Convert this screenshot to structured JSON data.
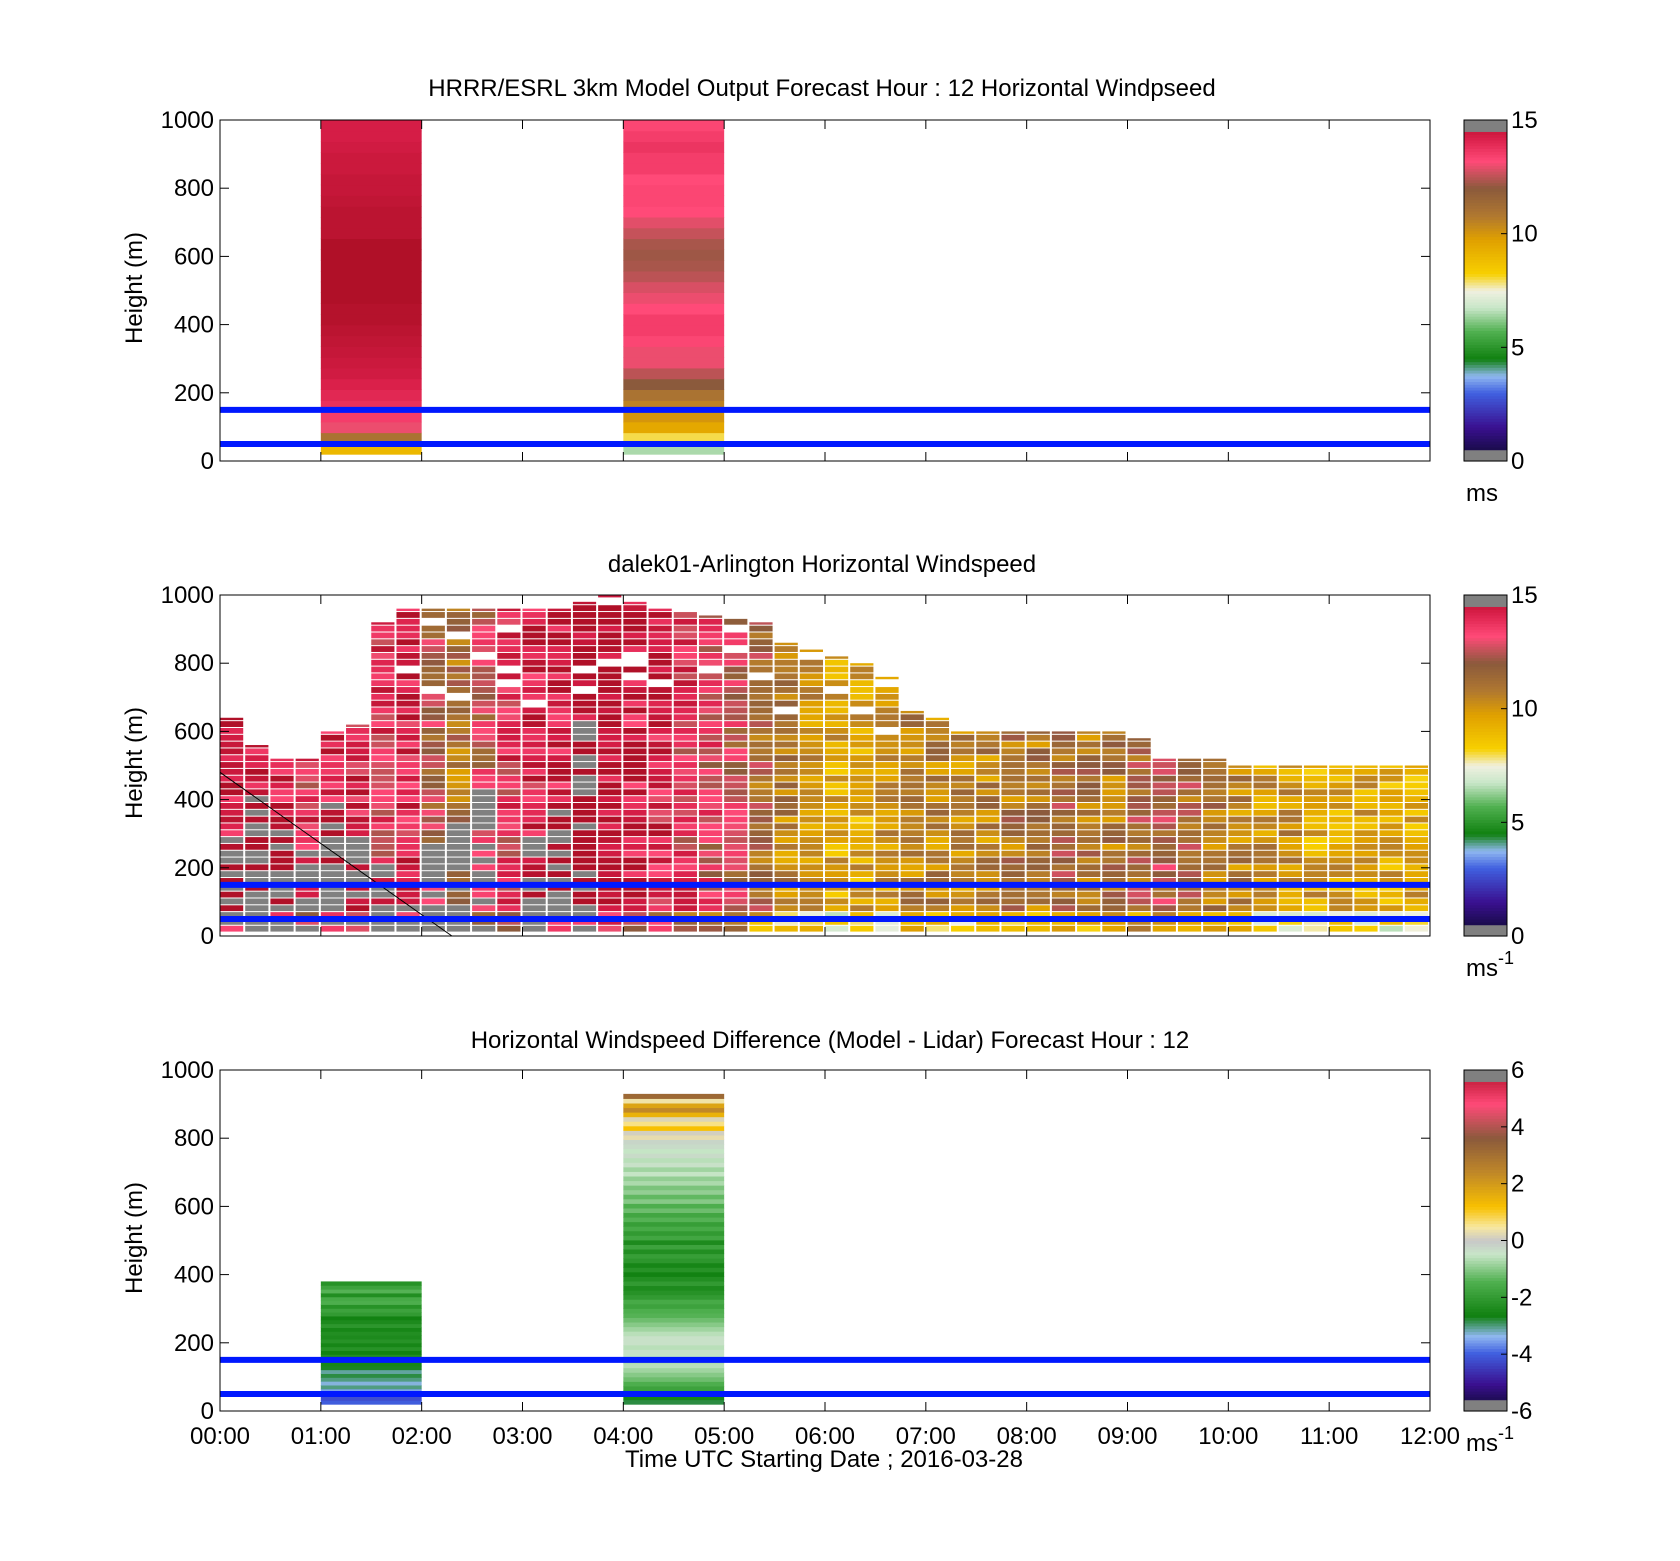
{
  "chart_data": [
    {
      "type": "heatmap",
      "title": "HRRR/ESRL 3km Model Output   Forecast Hour : 12 Horizontal Windpseed",
      "ylabel": "Height (m)",
      "xlabel": "",
      "ylim": [
        0,
        1000
      ],
      "yticks": [
        "0",
        "200",
        "400",
        "600",
        "800",
        "1000"
      ],
      "xlim_hours": [
        0,
        12
      ],
      "colorbar": {
        "ticks": [
          "0",
          "5",
          "10",
          "15"
        ],
        "range": [
          0,
          15
        ],
        "unit_base": "ms",
        "unit_sup": "",
        "palette": "speed"
      },
      "reference_lines_m": [
        50,
        150
      ],
      "columns": [
        {
          "t_start": 1.0,
          "t_end": 2.0,
          "bottom": 20,
          "top": 1000,
          "values": [
            9,
            11,
            13,
            13.5,
            13.8,
            14,
            14.2,
            14.4,
            14.5,
            14.6,
            14.7,
            14.8,
            14.9,
            14.9,
            15,
            15,
            15,
            15,
            15,
            15,
            14.8,
            14.8,
            14.8,
            14.7,
            14.6,
            14.6,
            14.5,
            14.5,
            14.4,
            14.3,
            14.3
          ]
        },
        {
          "t_start": 4.0,
          "t_end": 5.0,
          "bottom": 20,
          "top": 1000,
          "values": [
            6.5,
            8,
            9.5,
            10,
            10.5,
            11,
            12,
            12.5,
            13,
            13,
            13.3,
            13.5,
            13.5,
            13.2,
            13,
            12.8,
            12.5,
            12.3,
            12.2,
            12.3,
            12.6,
            12.9,
            13.2,
            13.3,
            13.3,
            13.2,
            13.5,
            13.5,
            13.7,
            13.5,
            13.3
          ]
        }
      ]
    },
    {
      "type": "heatmap",
      "title": "dalek01-Arlington  Horizontal Windspeed",
      "ylabel": "Height (m)",
      "xlabel": "",
      "ylim": [
        0,
        1000
      ],
      "yticks": [
        "0",
        "200",
        "400",
        "600",
        "800",
        "1000"
      ],
      "xlim_hours": [
        0,
        12
      ],
      "colorbar": {
        "ticks": [
          "0",
          "5",
          "10",
          "15"
        ],
        "range": [
          0,
          15
        ],
        "unit_base": "ms",
        "unit_sup": "-1",
        "palette": "speed"
      },
      "reference_lines_m": [
        50,
        150
      ],
      "column_width_hours": 0.25,
      "row_height_m": 20,
      "profiles": [
        {
          "t": 0.0,
          "top": 640,
          "v": 14.5,
          "gray_top": 280
        },
        {
          "t": 0.25,
          "top": 560,
          "v": 14,
          "gray_top": 420
        },
        {
          "t": 0.5,
          "top": 520,
          "v": 14.5,
          "gray_top": 300
        },
        {
          "t": 0.75,
          "top": 520,
          "v": 13.5,
          "gray_top": 250
        },
        {
          "t": 1.0,
          "top": 600,
          "v": 14.5,
          "gray_top": 380
        },
        {
          "t": 1.25,
          "top": 620,
          "v": 14,
          "gray_top": 330
        },
        {
          "t": 1.5,
          "top": 920,
          "v": 13.5,
          "gray_top": 200
        },
        {
          "t": 1.75,
          "top": 960,
          "v": 14,
          "gray_top": 120
        },
        {
          "t": 2.0,
          "top": 960,
          "v": 12,
          "gray_top": 260
        },
        {
          "t": 2.25,
          "top": 960,
          "v": 11,
          "gray_top": 320
        },
        {
          "t": 2.5,
          "top": 960,
          "v": 12.5,
          "gray_top": 420
        },
        {
          "t": 2.75,
          "top": 960,
          "v": 13.5,
          "gray_top": 0
        },
        {
          "t": 3.0,
          "top": 960,
          "v": 14,
          "gray_top": 280
        },
        {
          "t": 3.25,
          "top": 960,
          "v": 14.5,
          "gray_top": 380
        },
        {
          "t": 3.5,
          "top": 980,
          "v": 14.8,
          "gray_top": 620
        },
        {
          "t": 3.75,
          "top": 1000,
          "v": 15,
          "gray_top": 0
        },
        {
          "t": 4.0,
          "top": 980,
          "v": 14.5,
          "gray_top": 0
        },
        {
          "t": 4.25,
          "top": 960,
          "v": 14,
          "gray_top": 0
        },
        {
          "t": 4.5,
          "top": 950,
          "v": 13.5,
          "gray_top": 0
        },
        {
          "t": 4.75,
          "top": 940,
          "v": 13,
          "gray_top": 0
        },
        {
          "t": 5.0,
          "top": 940,
          "v": 12.5,
          "gray_top": 0
        },
        {
          "t": 5.25,
          "top": 920,
          "v": 11.5,
          "gray_top": 0
        },
        {
          "t": 5.5,
          "top": 860,
          "v": 10.5,
          "gray_top": 0
        },
        {
          "t": 5.75,
          "top": 840,
          "v": 10,
          "gray_top": 0
        },
        {
          "t": 6.0,
          "top": 820,
          "v": 9.5,
          "gray_top": 0
        },
        {
          "t": 6.25,
          "top": 800,
          "v": 9.5,
          "gray_top": 0
        },
        {
          "t": 6.5,
          "top": 760,
          "v": 10,
          "gray_top": 0
        },
        {
          "t": 6.75,
          "top": 660,
          "v": 10.5,
          "gray_top": 0
        },
        {
          "t": 7.0,
          "top": 640,
          "v": 10.5,
          "gray_top": 0
        },
        {
          "t": 7.25,
          "top": 600,
          "v": 10.5,
          "gray_top": 0
        },
        {
          "t": 7.5,
          "top": 600,
          "v": 10.5,
          "gray_top": 0
        },
        {
          "t": 7.75,
          "top": 600,
          "v": 11,
          "gray_top": 0
        },
        {
          "t": 8.0,
          "top": 600,
          "v": 11,
          "gray_top": 0
        },
        {
          "t": 8.25,
          "top": 600,
          "v": 11.5,
          "gray_top": 0
        },
        {
          "t": 8.5,
          "top": 600,
          "v": 11,
          "gray_top": 0
        },
        {
          "t": 8.75,
          "top": 600,
          "v": 11,
          "gray_top": 0
        },
        {
          "t": 9.0,
          "top": 580,
          "v": 11.5,
          "gray_top": 0
        },
        {
          "t": 9.25,
          "top": 520,
          "v": 12,
          "gray_top": 0
        },
        {
          "t": 9.5,
          "top": 520,
          "v": 11.5,
          "gray_top": 0
        },
        {
          "t": 9.75,
          "top": 520,
          "v": 11,
          "gray_top": 0
        },
        {
          "t": 10.0,
          "top": 500,
          "v": 10.5,
          "gray_top": 0
        },
        {
          "t": 10.25,
          "top": 500,
          "v": 10,
          "gray_top": 0
        },
        {
          "t": 10.5,
          "top": 500,
          "v": 10,
          "gray_top": 0
        },
        {
          "t": 10.75,
          "top": 500,
          "v": 9.5,
          "gray_top": 0
        },
        {
          "t": 11.0,
          "top": 500,
          "v": 9.5,
          "gray_top": 0
        },
        {
          "t": 11.25,
          "top": 500,
          "v": 9.5,
          "gray_top": 0
        },
        {
          "t": 11.5,
          "top": 500,
          "v": 9.5,
          "gray_top": 0
        },
        {
          "t": 11.75,
          "top": 500,
          "v": 9.5,
          "gray_top": 0
        }
      ]
    },
    {
      "type": "heatmap",
      "title": "Horizontal Windspeed Difference (Model - Lidar) Forecast Hour : 12",
      "ylabel": "Height (m)",
      "xlabel": "Time UTC  Starting Date ; 2016-03-28",
      "ylim": [
        0,
        1000
      ],
      "yticks": [
        "0",
        "200",
        "400",
        "600",
        "800",
        "1000"
      ],
      "xticks": [
        "00:00",
        "01:00",
        "02:00",
        "03:00",
        "04:00",
        "05:00",
        "06:00",
        "07:00",
        "08:00",
        "09:00",
        "10:00",
        "11:00",
        "12:00"
      ],
      "xlim_hours": [
        0,
        12
      ],
      "colorbar": {
        "ticks": [
          "-6",
          "-4",
          "-2",
          "0",
          "2",
          "4",
          "6"
        ],
        "range": [
          -6,
          6
        ],
        "unit_base": "ms",
        "unit_sup": "-1",
        "palette": "diff"
      },
      "reference_lines_m": [
        50,
        150
      ],
      "columns": [
        {
          "t_start": 1.0,
          "t_end": 2.0,
          "bottom": 20,
          "top": 380,
          "values": [
            -4,
            -4.2,
            -3.2,
            -3.5,
            -3,
            -3.3,
            -3,
            -2.8,
            -3.1,
            -2.7,
            -2.5,
            -2.8,
            -2.3,
            -2.6,
            -2.2,
            -2.5,
            -2.2,
            -2.4,
            -2.3,
            -2.5,
            -2.1,
            -2.4,
            -2.6,
            -2,
            -1.8,
            -2.2,
            -1.5,
            -1.6,
            -2.3,
            -1.4,
            -1.8,
            -2.2
          ]
        },
        {
          "t_start": 4.0,
          "t_end": 5.0,
          "bottom": 20,
          "top": 930,
          "values": [
            -2.8,
            -2.5,
            -2.2,
            -1.8,
            -1.5,
            -1.2,
            -1,
            -0.8,
            -0.6,
            -0.7,
            -0.5,
            -0.4,
            -0.6,
            -0.4,
            -0.4,
            -0.6,
            -0.8,
            -1,
            -1.2,
            -1.4,
            -1.5,
            -1.8,
            -1.6,
            -2,
            -2.2,
            -2.4,
            -2,
            -2.3,
            -2.6,
            -2.2,
            -2.5,
            -2.1,
            -1.9,
            -2.3,
            -1.8,
            -2.4,
            -1.7,
            -2,
            -1.6,
            -1.9,
            -1.4,
            -1.7,
            -1.2,
            -1.5,
            -1,
            -1.3,
            -0.9,
            -1.1,
            -0.7,
            -0.9,
            -0.5,
            -0.8,
            -0.4,
            -0.6,
            -0.3,
            -0.5,
            -0.3,
            -0.2,
            0.3,
            0.1,
            1.2,
            0.6,
            0.2,
            1.5,
            2.4,
            1.8,
            0.4,
            3.2
          ]
        }
      ]
    }
  ]
}
